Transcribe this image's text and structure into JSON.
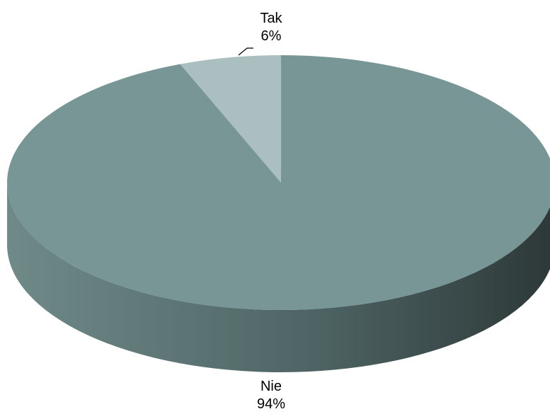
{
  "chart_data": {
    "type": "pie",
    "style": "3d",
    "categories": [
      "Tak",
      "Nie"
    ],
    "values": [
      6,
      94
    ],
    "value_labels": [
      "6%",
      "94%"
    ],
    "colors": {
      "top": [
        "#abbfc0",
        "#779695"
      ],
      "side_light": "#6f8a89",
      "side_dark": "#2d3838"
    },
    "start_angle_deg": 90,
    "legend": "none"
  }
}
